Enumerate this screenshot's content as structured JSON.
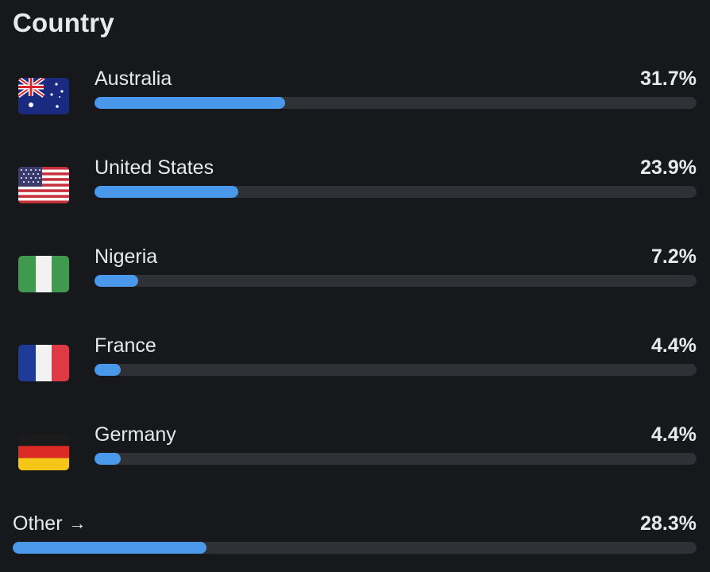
{
  "title": "Country",
  "countries": [
    {
      "name": "Australia",
      "percent_label": "31.7%",
      "percent": 31.7,
      "flag": "australia-flag-icon"
    },
    {
      "name": "United States",
      "percent_label": "23.9%",
      "percent": 23.9,
      "flag": "united-states-flag-icon"
    },
    {
      "name": "Nigeria",
      "percent_label": "7.2%",
      "percent": 7.2,
      "flag": "nigeria-flag-icon"
    },
    {
      "name": "France",
      "percent_label": "4.4%",
      "percent": 4.4,
      "flag": "france-flag-icon"
    },
    {
      "name": "Germany",
      "percent_label": "4.4%",
      "percent": 4.4,
      "flag": "germany-flag-icon"
    }
  ],
  "other": {
    "label": "Other",
    "arrow": "→",
    "percent_label": "28.3%",
    "percent": 28.3
  },
  "colors": {
    "background": "#17181c",
    "bar_track": "#2f3136",
    "bar_fill": "#4a98ea",
    "text": "#e7e9ea"
  }
}
